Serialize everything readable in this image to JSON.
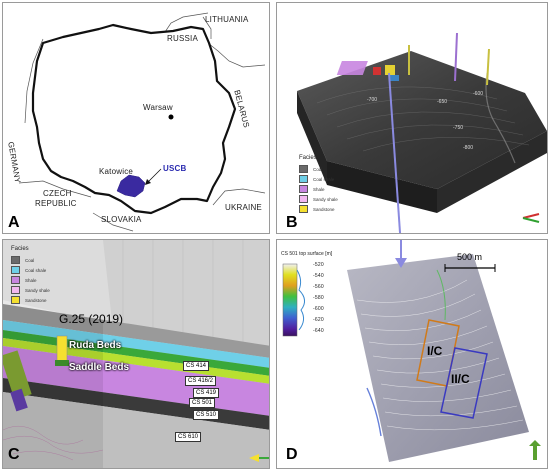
{
  "panel_a": {
    "letter": "A",
    "labels": {
      "lithuania": "LITHUANIA",
      "russia": "RUSSIA",
      "belarus": "BELARUS",
      "germany": "GERMANY",
      "warsaw": "Warsaw",
      "katowice": "Katowice",
      "uscb": "USCB",
      "czech": "CZECH",
      "republic": "REPUBLIC",
      "slovakia": "SLOVAKIA",
      "ukraine": "UKRAINE"
    },
    "colors": {
      "basin": "#3a2aa0",
      "uscb_text": "#2b2bb0"
    }
  },
  "panel_b": {
    "letter": "B",
    "legend_title": "Facies",
    "legend_items": [
      {
        "label": "Coal",
        "color": "#6a6a6a"
      },
      {
        "label": "Coal shale",
        "color": "#6fd0e8"
      },
      {
        "label": "Shale",
        "color": "#c886e0"
      },
      {
        "label": "Sandy shale",
        "color": "#f2b8f0"
      },
      {
        "label": "Sandstone",
        "color": "#f5e030"
      }
    ],
    "contour_labels": [
      "-800",
      "-750",
      "-700",
      "-650",
      "-600"
    ]
  },
  "panel_c": {
    "letter": "C",
    "legend_title": "Facies",
    "legend_items": [
      {
        "label": "Coal",
        "color": "#6a6a6a"
      },
      {
        "label": "Coal shale",
        "color": "#6fd0e8"
      },
      {
        "label": "Shale",
        "color": "#c886e0"
      },
      {
        "label": "Sandy shale",
        "color": "#f2b8f0"
      },
      {
        "label": "Sandstone",
        "color": "#f5e030"
      }
    ],
    "well_label": "G.25 (2019)",
    "ruda_beds": "Ruda Beds",
    "saddle_beds": "Saddle Beds",
    "cs_labels": [
      "CS 414",
      "CS 416/2",
      "CS 419",
      "CS 501",
      "CS 510",
      "CS 610"
    ]
  },
  "panel_d": {
    "letter": "D",
    "colorbar_title": "CS 501 top surface [m]",
    "colorbar_ticks": [
      "-520",
      "-540",
      "-560",
      "-580",
      "-600",
      "-620",
      "-640"
    ],
    "scale_label": "500 m",
    "box_ic": "I/C",
    "box_iic": "II/C",
    "colors": {
      "box_ic": "#d07a1a",
      "box_iic": "#3a3ac0"
    }
  }
}
